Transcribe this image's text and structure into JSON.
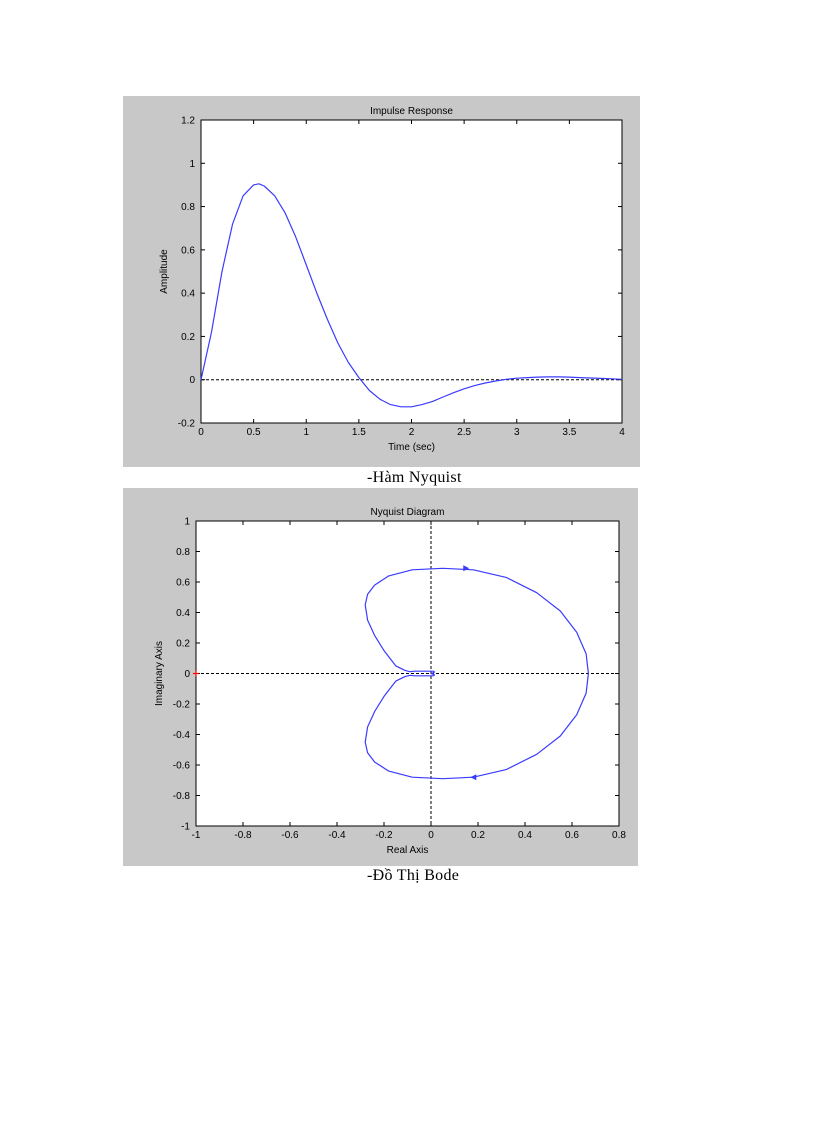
{
  "captions": {
    "nyquist": "-Hàm Nyquist",
    "bode": "-Đồ Thị Bode"
  },
  "colors": {
    "figure_bg": "#c8c8c8",
    "plot_bg": "#ffffff",
    "curve": "#3b3bff",
    "marker": "#ff0000"
  },
  "chart_data": [
    {
      "type": "line",
      "title": "Impulse Response",
      "xlabel": "Time (sec)",
      "ylabel": "Amplitude",
      "xlim": [
        0,
        4
      ],
      "ylim": [
        -0.2,
        1.2
      ],
      "xticks": [
        0,
        0.5,
        1,
        1.5,
        2,
        2.5,
        3,
        3.5,
        4
      ],
      "xtick_labels": [
        "0",
        "0.5",
        "1",
        "1.5",
        "2",
        "2.5",
        "3",
        "3.5",
        "4"
      ],
      "yticks": [
        -0.2,
        0,
        0.2,
        0.4,
        0.6,
        0.8,
        1,
        1.2
      ],
      "ytick_labels": [
        "-0.2",
        "0",
        "0.2",
        "0.4",
        "0.6",
        "0.8",
        "1",
        "1.2"
      ],
      "zero_line": true,
      "series": [
        {
          "x": [
            0,
            0.1,
            0.2,
            0.3,
            0.4,
            0.5,
            0.55,
            0.6,
            0.7,
            0.8,
            0.9,
            1.0,
            1.1,
            1.2,
            1.3,
            1.4,
            1.5,
            1.6,
            1.7,
            1.8,
            1.9,
            2.0,
            2.1,
            2.2,
            2.3,
            2.4,
            2.5,
            2.6,
            2.7,
            2.8,
            2.9,
            3.0,
            3.1,
            3.2,
            3.3,
            3.4,
            3.5,
            3.6,
            3.7,
            3.8,
            3.9,
            4.0
          ],
          "y": [
            0,
            0.22,
            0.5,
            0.72,
            0.85,
            0.9,
            0.905,
            0.895,
            0.85,
            0.77,
            0.66,
            0.53,
            0.4,
            0.28,
            0.17,
            0.08,
            0.01,
            -0.05,
            -0.09,
            -0.115,
            -0.125,
            -0.125,
            -0.115,
            -0.1,
            -0.08,
            -0.06,
            -0.042,
            -0.027,
            -0.015,
            -0.006,
            0.002,
            0.007,
            0.01,
            0.012,
            0.013,
            0.013,
            0.012,
            0.01,
            0.008,
            0.006,
            0.004,
            0.002
          ]
        }
      ]
    },
    {
      "type": "line",
      "title": "Nyquist Diagram",
      "xlabel": "Real Axis",
      "ylabel": "Imaginary Axis",
      "xlim": [
        -1,
        0.8
      ],
      "ylim": [
        -1,
        1
      ],
      "xticks": [
        -1,
        -0.8,
        -0.6,
        -0.4,
        -0.2,
        0,
        0.2,
        0.4,
        0.6,
        0.8
      ],
      "xtick_labels": [
        "-1",
        "-0.8",
        "-0.6",
        "-0.4",
        "-0.2",
        "0",
        "0.2",
        "0.4",
        "0.6",
        "0.8"
      ],
      "yticks": [
        -1,
        -0.8,
        -0.6,
        -0.4,
        -0.2,
        0,
        0.2,
        0.4,
        0.6,
        0.8,
        1
      ],
      "ytick_labels": [
        "-1",
        "-0.8",
        "-0.6",
        "-0.4",
        "-0.2",
        "0",
        "0.2",
        "0.4",
        "0.6",
        "0.8",
        "1"
      ],
      "crosshair_at": [
        0,
        0
      ],
      "critical_point": [
        -1,
        0
      ],
      "series": [
        {
          "x": [
            0,
            0.01,
            0.015,
            0.01,
            -0.03,
            -0.07,
            -0.09,
            -0.11,
            -0.15,
            -0.2,
            -0.24,
            -0.27,
            -0.28,
            -0.27,
            -0.24,
            -0.18,
            -0.08,
            0.05,
            0.18,
            0.32,
            0.45,
            0.55,
            0.62,
            0.66,
            0.67
          ],
          "y": [
            0,
            0.005,
            0.01,
            0.015,
            0.015,
            0.015,
            0.012,
            0.02,
            0.05,
            0.15,
            0.25,
            0.35,
            0.45,
            0.52,
            0.58,
            0.64,
            0.68,
            0.69,
            0.68,
            0.63,
            0.53,
            0.41,
            0.27,
            0.13,
            0
          ]
        },
        {
          "x": [
            0,
            0.01,
            0.015,
            0.01,
            -0.03,
            -0.07,
            -0.09,
            -0.11,
            -0.15,
            -0.2,
            -0.24,
            -0.27,
            -0.28,
            -0.27,
            -0.24,
            -0.18,
            -0.08,
            0.05,
            0.18,
            0.32,
            0.45,
            0.55,
            0.62,
            0.66,
            0.67
          ],
          "y": [
            0,
            -0.005,
            -0.01,
            -0.015,
            -0.015,
            -0.015,
            -0.012,
            -0.02,
            -0.05,
            -0.15,
            -0.25,
            -0.35,
            -0.45,
            -0.52,
            -0.58,
            -0.64,
            -0.68,
            -0.69,
            -0.68,
            -0.63,
            -0.53,
            -0.41,
            -0.27,
            -0.13,
            0
          ]
        }
      ],
      "arrows": [
        {
          "x": 0.15,
          "y": 0.69,
          "direction": "right"
        },
        {
          "x": 0.18,
          "y": -0.68,
          "direction": "left"
        }
      ]
    }
  ]
}
